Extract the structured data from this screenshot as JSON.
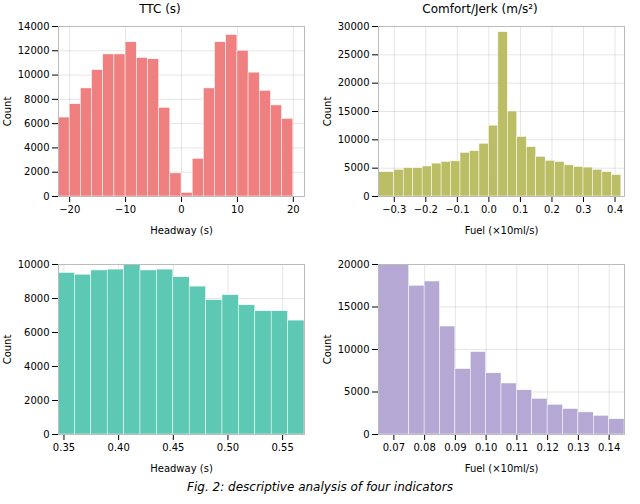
{
  "chart_data": [
    {
      "type": "histogram",
      "title": "TTC (s)",
      "xlabel": "Headway (s)",
      "ylabel": "Count",
      "color": "#F08080",
      "bins": [
        -22,
        -20,
        -18,
        -16,
        -14,
        -12,
        -10,
        -8,
        -6,
        -4,
        -2,
        0,
        2,
        4,
        6,
        8,
        10,
        12,
        14,
        16,
        18,
        20,
        22
      ],
      "values": [
        6500,
        7600,
        8900,
        10400,
        11700,
        11700,
        12700,
        11400,
        11300,
        7300,
        1900,
        300,
        3100,
        8900,
        12700,
        13300,
        12000,
        10200,
        8700,
        7500,
        6400,
        0
      ],
      "xlim": [
        -22,
        22
      ],
      "ylim": [
        0,
        14000
      ],
      "xticks": [
        -20,
        -10,
        0,
        10,
        20
      ],
      "yticks": [
        0,
        2000,
        4000,
        6000,
        8000,
        10000,
        12000,
        14000
      ],
      "grid": true
    },
    {
      "type": "histogram",
      "title": "Comfort/Jerk (m/s²)",
      "xlabel": "Fuel (×10ml/s)",
      "ylabel": "Count",
      "color": "#BBBE64",
      "bins": [
        -0.35,
        -0.3,
        -0.27,
        -0.24,
        -0.21,
        -0.18,
        -0.15,
        -0.12,
        -0.09,
        -0.06,
        -0.03,
        0.0,
        0.03,
        0.06,
        0.09,
        0.12,
        0.15,
        0.18,
        0.21,
        0.24,
        0.27,
        0.3,
        0.33,
        0.36,
        0.39,
        0.42
      ],
      "values": [
        4300,
        4700,
        5000,
        5000,
        5300,
        5800,
        6100,
        6200,
        7700,
        8000,
        9300,
        12500,
        29000,
        15000,
        10500,
        8700,
        7000,
        6300,
        6100,
        5500,
        5200,
        5100,
        4700,
        4300,
        3800
      ],
      "xlim": [
        -0.35,
        0.43
      ],
      "ylim": [
        0,
        30000
      ],
      "xticks": [
        -0.3,
        -0.2,
        -0.1,
        {
          "value": 0,
          "label": "0.0"
        },
        0.1,
        0.2,
        0.3,
        0.4
      ],
      "yticks": [
        0,
        5000,
        10000,
        15000,
        20000,
        25000,
        30000
      ],
      "grid": true
    },
    {
      "type": "histogram",
      "xlabel": "Headway (s)",
      "ylabel": "Count",
      "color": "#5DC8B4",
      "bins": [
        0.345,
        0.36,
        0.375,
        0.39,
        0.405,
        0.42,
        0.435,
        0.45,
        0.465,
        0.48,
        0.495,
        0.51,
        0.525,
        0.54,
        0.555,
        0.57
      ],
      "values": [
        9500,
        9400,
        9650,
        9700,
        10000,
        9650,
        9700,
        9250,
        8700,
        7900,
        8200,
        7600,
        7250,
        7250,
        6700
      ],
      "xlim": [
        0.345,
        0.57
      ],
      "ylim": [
        0,
        10000
      ],
      "xticks": [
        0.35,
        {
          "value": 0.4,
          "label": "0.40"
        },
        0.45,
        {
          "value": 0.5,
          "label": "0.50"
        },
        0.55
      ],
      "yticks": [
        0,
        2000,
        4000,
        6000,
        8000,
        10000
      ],
      "grid": true
    },
    {
      "type": "histogram",
      "xlabel": "Fuel (×10ml/s)",
      "ylabel": "Count",
      "color": "#B5A8D5",
      "bins": [
        0.065,
        0.075,
        0.08,
        0.085,
        0.09,
        0.095,
        0.1,
        0.105,
        0.11,
        0.115,
        0.12,
        0.125,
        0.13,
        0.135,
        0.14,
        0.145
      ],
      "values": [
        20000,
        17500,
        18000,
        12700,
        7700,
        9700,
        7200,
        6000,
        5200,
        4200,
        3500,
        3000,
        2600,
        2200,
        1800
      ],
      "xlim": [
        0.065,
        0.145
      ],
      "ylim": [
        0,
        20000
      ],
      "xticks": [
        0.07,
        0.08,
        0.09,
        {
          "value": 0.1,
          "label": "0.10"
        },
        0.11,
        0.12,
        0.13,
        0.14
      ],
      "yticks": [
        0,
        5000,
        10000,
        15000,
        20000
      ],
      "grid": true
    }
  ],
  "caption": "Fig. 2: descriptive analysis of four indicators"
}
